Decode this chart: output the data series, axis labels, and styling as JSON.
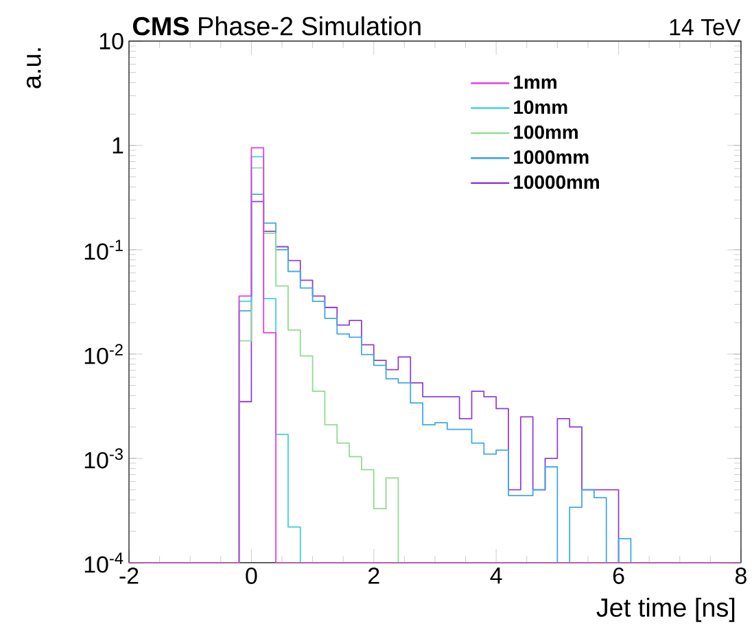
{
  "chart_data": {
    "type": "histogram",
    "title": "**CMS** Phase-2 Simulation",
    "subtitle": "14 TeV",
    "xlabel": "Jet time [ns]",
    "ylabel": "a.u.",
    "bins": [
      -2.0,
      -1.8,
      -1.6,
      -1.4,
      -1.2,
      -1.0,
      -0.8,
      -0.6,
      -0.4,
      -0.2,
      0,
      0.2,
      0.4,
      0.6,
      0.8,
      1.0,
      1.2,
      1.4,
      1.6,
      1.8,
      2.0,
      2.2,
      2.4,
      2.6,
      2.8,
      3.0,
      3.2,
      3.4,
      3.6,
      3.8,
      4.0,
      4.2,
      4.4,
      4.6,
      4.8,
      5.0,
      5.2,
      5.4,
      5.6,
      5.8,
      6.0,
      6.2,
      6.4,
      6.6,
      6.8,
      7.0,
      7.2,
      7.4,
      7.6,
      7.8,
      8.0
    ],
    "series": [
      {
        "name": "1mm",
        "color": "#e040e0",
        "values": [
          null,
          null,
          null,
          null,
          null,
          null,
          null,
          null,
          null,
          0.036,
          0.95,
          0.016,
          null,
          null,
          null,
          null,
          null,
          null,
          null,
          null,
          null,
          null,
          null,
          null,
          null,
          null,
          null,
          null,
          null,
          null,
          null,
          null,
          null,
          null,
          null,
          null,
          null,
          null,
          null,
          null,
          null,
          null,
          null,
          null,
          null,
          null,
          null,
          null,
          null,
          null
        ]
      },
      {
        "name": "10mm",
        "color": "#40d0e0",
        "values": [
          null,
          null,
          null,
          null,
          null,
          null,
          null,
          null,
          null,
          0.032,
          0.78,
          0.034,
          0.0017,
          0.00022,
          null,
          null,
          null,
          null,
          null,
          null,
          null,
          null,
          null,
          null,
          null,
          null,
          null,
          null,
          null,
          null,
          null,
          null,
          null,
          null,
          null,
          null,
          null,
          null,
          null,
          null,
          null,
          null,
          null,
          null,
          null,
          null,
          null,
          null,
          null,
          null
        ]
      },
      {
        "name": "100mm",
        "color": "#90dc90",
        "values": [
          null,
          null,
          null,
          null,
          null,
          null,
          null,
          null,
          null,
          0.0134,
          0.61,
          0.144,
          0.045,
          0.017,
          0.0096,
          0.0044,
          0.0021,
          0.0014,
          0.00104,
          0.00078,
          0.00033,
          0.00065,
          null,
          null,
          null,
          null,
          null,
          null,
          null,
          null,
          null,
          null,
          null,
          null,
          null,
          null,
          null,
          null,
          null,
          null,
          null,
          null,
          null,
          null,
          null,
          null,
          null,
          null,
          null,
          null
        ]
      },
      {
        "name": "1000mm",
        "color": "#40a8e8",
        "values": [
          null,
          null,
          null,
          null,
          null,
          null,
          null,
          null,
          null,
          0.026,
          0.34,
          0.18,
          0.1,
          0.062,
          0.043,
          0.032,
          0.022,
          0.0156,
          0.0145,
          0.0099,
          0.0078,
          0.0058,
          0.0053,
          0.0034,
          0.0021,
          0.0022,
          0.0019,
          0.0019,
          0.0014,
          0.0011,
          0.0012,
          0.00044,
          0.00044,
          0.0005,
          0.00083,
          null,
          0.00034,
          0.0005,
          0.00042,
          null,
          0.00017,
          null,
          null,
          null,
          null,
          null,
          null,
          null,
          null,
          null
        ]
      },
      {
        "name": "10000mm",
        "color": "#9040d0",
        "values": [
          null,
          null,
          null,
          null,
          null,
          null,
          null,
          null,
          null,
          0.0035,
          0.29,
          0.15,
          0.107,
          0.079,
          0.051,
          0.036,
          0.028,
          0.019,
          0.021,
          0.0123,
          0.0087,
          0.0071,
          0.0094,
          0.0053,
          0.0039,
          0.0039,
          0.0039,
          0.0024,
          0.0044,
          0.0039,
          0.003,
          0.0005,
          0.0025,
          0.0005,
          0.001,
          0.0024,
          0.002,
          0.0005,
          0.0005,
          0.0005,
          null,
          null,
          null,
          null,
          null,
          null,
          null,
          null,
          null,
          null
        ]
      }
    ],
    "xlim": [
      -2,
      8
    ],
    "xticks": [
      -2,
      0,
      2,
      4,
      6,
      8
    ],
    "ylim": [
      0.0001,
      10
    ],
    "yticks": [
      {
        "value": 0.0001,
        "label": "10$^{-4}$"
      },
      {
        "value": 0.001,
        "label": "10$^{-3}$"
      },
      {
        "value": 0.01,
        "label": "10$^{-2}$"
      },
      {
        "value": 0.1,
        "label": "10$^{-1}$"
      },
      1,
      10
    ],
    "log": "y",
    "legend": "top right"
  }
}
